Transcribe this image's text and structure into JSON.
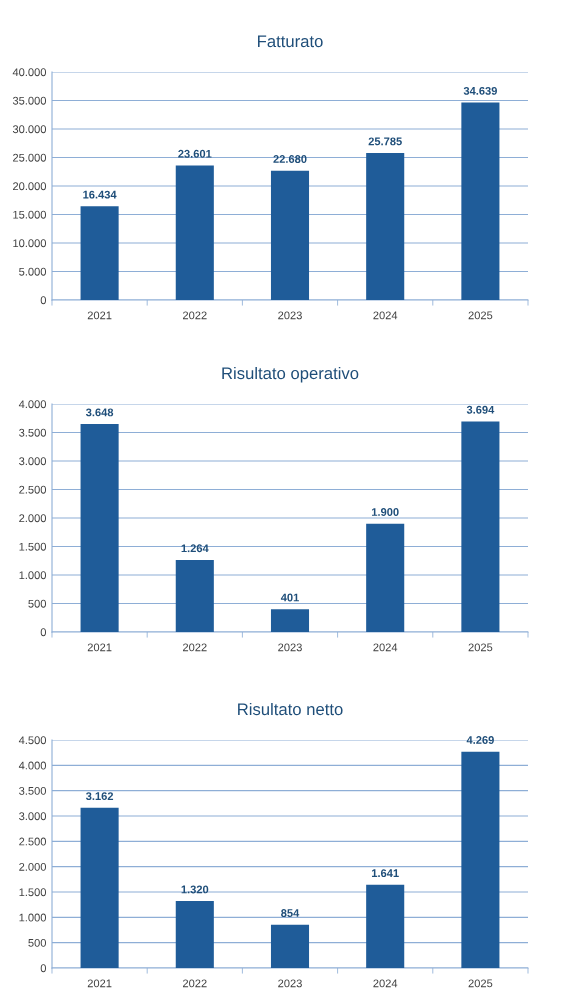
{
  "chart_data": [
    {
      "type": "bar",
      "title": "Fatturato",
      "categories": [
        "2021",
        "2022",
        "2023",
        "2024",
        "2025"
      ],
      "values": [
        16434,
        23601,
        22680,
        25785,
        34639
      ],
      "color": "#1f5c99",
      "value_labels": [
        "16.434",
        "23.601",
        "22.680",
        "25.785",
        "34.639"
      ],
      "ylim": [
        0,
        40000
      ],
      "yticks": [
        {
          "value": 0,
          "label": "0"
        },
        {
          "value": 5000,
          "label": "5.000"
        },
        {
          "value": 10000,
          "label": "10.000"
        },
        {
          "value": 15000,
          "label": "15.000"
        },
        {
          "value": 20000,
          "label": "20.000"
        },
        {
          "value": 25000,
          "label": "25.000"
        },
        {
          "value": 30000,
          "label": "30.000"
        },
        {
          "value": 35000,
          "label": "35.000"
        },
        {
          "value": 40000,
          "label": "40.000"
        }
      ],
      "grid": "y"
    },
    {
      "type": "bar",
      "title": "Risultato operativo",
      "categories": [
        "2021",
        "2022",
        "2023",
        "2024",
        "2025"
      ],
      "values": [
        3648,
        1264,
        401,
        1900,
        3694
      ],
      "color": "#1f5c99",
      "value_labels": [
        "3.648",
        "1.264",
        "401",
        "1.900",
        "3.694"
      ],
      "ylim": [
        0,
        4000
      ],
      "yticks": [
        {
          "value": 0,
          "label": "0"
        },
        {
          "value": 500,
          "label": "500"
        },
        {
          "value": 1000,
          "label": "1.000"
        },
        {
          "value": 1500,
          "label": "1.500"
        },
        {
          "value": 2000,
          "label": "2.000"
        },
        {
          "value": 2500,
          "label": "2.500"
        },
        {
          "value": 3000,
          "label": "3.000"
        },
        {
          "value": 3500,
          "label": "3.500"
        },
        {
          "value": 4000,
          "label": "4.000"
        }
      ],
      "grid": "y"
    },
    {
      "type": "bar",
      "title": "Risultato netto",
      "categories": [
        "2021",
        "2022",
        "2023",
        "2024",
        "2025"
      ],
      "values": [
        3162,
        1320,
        854,
        1641,
        4269
      ],
      "color": "#1f5c99",
      "value_labels": [
        "3.162",
        "1.320",
        "854",
        "1.641",
        "4.269"
      ],
      "ylim": [
        0,
        4500
      ],
      "yticks": [
        {
          "value": 0,
          "label": "0"
        },
        {
          "value": 500,
          "label": "500"
        },
        {
          "value": 1000,
          "label": "1.000"
        },
        {
          "value": 1500,
          "label": "1.500"
        },
        {
          "value": 2000,
          "label": "2.000"
        },
        {
          "value": 2500,
          "label": "2.500"
        },
        {
          "value": 3000,
          "label": "3.000"
        },
        {
          "value": 3500,
          "label": "3.500"
        },
        {
          "value": 4000,
          "label": "4.000"
        },
        {
          "value": 4500,
          "label": "4.500"
        }
      ],
      "grid": "y"
    }
  ]
}
